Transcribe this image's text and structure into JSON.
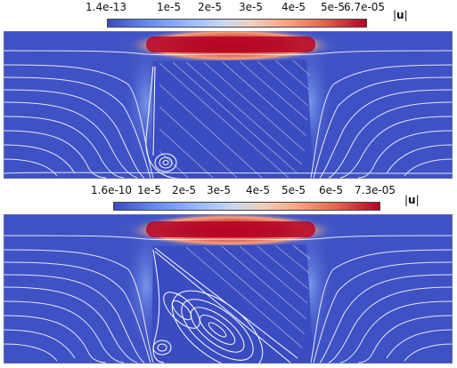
{
  "panel_top": {
    "colorbar": {
      "ticks": [
        "1.4e-13",
        "1e-5",
        "2e-5",
        "3e-5",
        "4e-5",
        "5e-5",
        "6.7e-05"
      ],
      "title_bars": "|",
      "title_letter": "u",
      "colors": [
        "#3b4cc0",
        "#b40426"
      ]
    }
  },
  "panel_bottom": {
    "colorbar": {
      "ticks": [
        "1.6e-10",
        "1e-5",
        "2e-5",
        "3e-5",
        "4e-5",
        "5e-5",
        "6e-5",
        "7.3e-05"
      ],
      "title_bars": "|",
      "title_letter": "u",
      "colors": [
        "#3b4cc0",
        "#b40426"
      ]
    }
  }
}
